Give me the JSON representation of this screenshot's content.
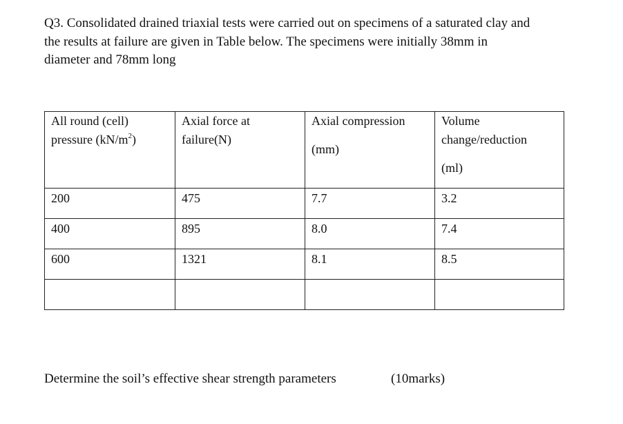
{
  "question": {
    "lines": [
      "Q3. Consolidated drained triaxial tests were carried out on specimens of a saturated clay and",
      "the results at failure are given in Table below. The specimens were initially 38mm in",
      "diameter and 78mm long"
    ]
  },
  "table": {
    "headers": [
      {
        "line1": "All round (cell)",
        "line2": "pressure (kN/m",
        "sup": "2",
        "line2_end": ")"
      },
      {
        "line1": "Axial force at",
        "line2": "failure(N)"
      },
      {
        "line1": "Axial compression",
        "line3": "(mm)"
      },
      {
        "line1": "Volume",
        "line2": "change/reduction",
        "line3": "(ml)"
      }
    ],
    "rows": [
      [
        "200",
        "475",
        "7.7",
        "3.2"
      ],
      [
        "400",
        "895",
        "8.0",
        "7.4"
      ],
      [
        "600",
        "1321",
        "8.1",
        "8.5"
      ],
      [
        "",
        "",
        "",
        ""
      ]
    ]
  },
  "footer": {
    "instruction": "Determine the soil’s effective shear strength parameters",
    "marks": "(10marks)"
  }
}
